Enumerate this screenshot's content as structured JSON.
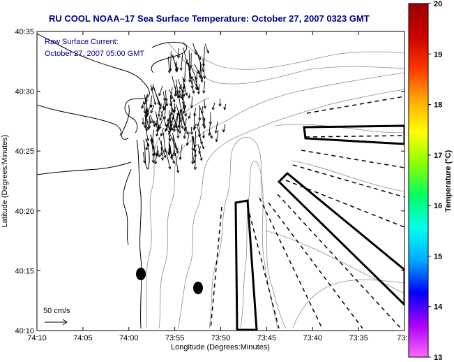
{
  "title": "RU COOL  NOAA–17  Sea Surface Temperature:  October 27, 2007 0323 GMT",
  "annotation": {
    "line1": "Raw Surface Current:",
    "line2": "October 27, 2007 05:00 GMT"
  },
  "scale_label": "50 cm/s",
  "axes": {
    "xlabel": "Longitude (Degrees:Minutes)",
    "ylabel": "Latitude (Degrees:Minutes)",
    "x_ticks": [
      "74:10",
      "74:05",
      "74:00",
      "73:55",
      "73:50",
      "73:45",
      "73:40",
      "73:35",
      "73:3"
    ],
    "y_ticks": [
      "40:35",
      "40:30",
      "40:25",
      "40:20",
      "40:15",
      "40:10"
    ]
  },
  "colorbar": {
    "label": "Temperature (°C)",
    "ticks": [
      "20",
      "19",
      "18",
      "17",
      "16",
      "15",
      "14",
      "13"
    ],
    "range": [
      13,
      20
    ],
    "colors": [
      "#ff66ff",
      "#aa00ff",
      "#0000ff",
      "#00aaff",
      "#00ffee",
      "#00ff66",
      "#88ff00",
      "#ffff00",
      "#ffaa00",
      "#ff3300",
      "#cc0000",
      "#990000"
    ]
  },
  "colors": {
    "title": "#00008b",
    "contour": "#8c8c8c",
    "land_line": "#000000"
  }
}
